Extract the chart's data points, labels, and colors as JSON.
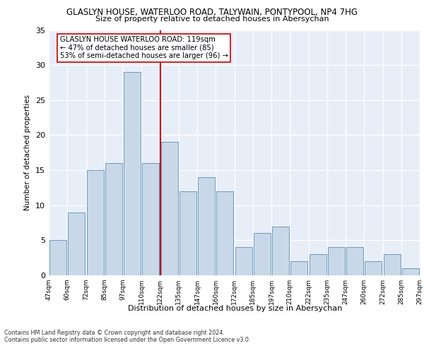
{
  "title": "GLASLYN HOUSE, WATERLOO ROAD, TALYWAIN, PONTYPOOL, NP4 7HG",
  "subtitle": "Size of property relative to detached houses in Abersychan",
  "xlabel": "Distribution of detached houses by size in Abersychan",
  "ylabel": "Number of detached properties",
  "bins": [
    "47sqm",
    "60sqm",
    "72sqm",
    "85sqm",
    "97sqm",
    "110sqm",
    "122sqm",
    "135sqm",
    "147sqm",
    "160sqm",
    "172sqm",
    "185sqm",
    "197sqm",
    "210sqm",
    "222sqm",
    "235sqm",
    "247sqm",
    "260sqm",
    "272sqm",
    "285sqm",
    "297sqm"
  ],
  "bar_heights": [
    5,
    9,
    15,
    16,
    29,
    16,
    19,
    12,
    14,
    12,
    4,
    6,
    7,
    2,
    3,
    4,
    4,
    2,
    3,
    1,
    0
  ],
  "bar_color": "#c8d8e8",
  "bar_edge_color": "#5a8db5",
  "vline_color": "#cc0000",
  "vline_x": 6.0,
  "annotation_title": "GLASLYN HOUSE WATERLOO ROAD: 119sqm",
  "annotation_line1": "← 47% of detached houses are smaller (85)",
  "annotation_line2": "53% of semi-detached houses are larger (96) →",
  "ylim": [
    0,
    35
  ],
  "yticks": [
    0,
    5,
    10,
    15,
    20,
    25,
    30,
    35
  ],
  "footer1": "Contains HM Land Registry data © Crown copyright and database right 2024.",
  "footer2": "Contains public sector information licensed under the Open Government Licence v3.0.",
  "plot_bg_color": "#e8eef8"
}
